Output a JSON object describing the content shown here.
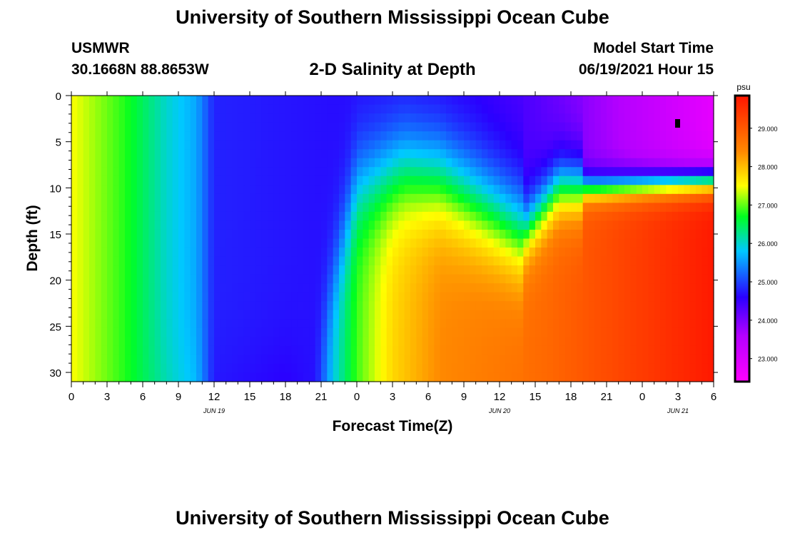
{
  "page": {
    "title_top": "University of Southern Mississippi Ocean Cube",
    "title_bottom": "University of Southern Mississippi Ocean Cube",
    "station": "USMWR",
    "coords": "30.1668N  88.8653W",
    "subtitle": "2-D Salinity at Depth",
    "model_label": "Model Start Time",
    "model_time": "06/19/2021 Hour 15"
  },
  "chart_data": {
    "type": "heatmap",
    "title": "2-D Salinity at Depth",
    "xlabel": "Forecast Time(Z)",
    "ylabel": "Depth (ft)",
    "x_hours": [
      0,
      54
    ],
    "x_ticks": [
      "0",
      "3",
      "6",
      "9",
      "12",
      "15",
      "18",
      "21",
      "0",
      "3",
      "6",
      "9",
      "12",
      "15",
      "18",
      "21",
      "0",
      "3",
      "6"
    ],
    "x_tick_hours": [
      0,
      3,
      6,
      9,
      12,
      15,
      18,
      21,
      24,
      27,
      30,
      33,
      36,
      39,
      42,
      45,
      48,
      51,
      54
    ],
    "date_labels": [
      "JUN 19",
      "JUN 20",
      "JUN 21"
    ],
    "date_label_hours": [
      12,
      36,
      51
    ],
    "ylim": [
      0,
      31
    ],
    "y_ticks": [
      "0",
      "5",
      "10",
      "15",
      "20",
      "25",
      "30"
    ],
    "y_tick_values": [
      0,
      5,
      10,
      15,
      20,
      25,
      30
    ],
    "colorbar": {
      "unit": "psu",
      "range": [
        22.4,
        29.85
      ],
      "ticks": [
        "23.000",
        "24.000",
        "25.000",
        "26.000",
        "27.000",
        "28.000",
        "29.000"
      ],
      "tick_values": [
        23,
        24,
        25,
        26,
        27,
        28,
        29
      ],
      "colors": [
        "#ff00ff",
        "#b400ff",
        "#2a00ff",
        "#00c8ff",
        "#00ff20",
        "#ffff00",
        "#ff8800",
        "#ff1500"
      ],
      "color_values": [
        22.4,
        23.6,
        24.6,
        25.8,
        26.7,
        27.5,
        28.4,
        29.85
      ]
    }
  }
}
